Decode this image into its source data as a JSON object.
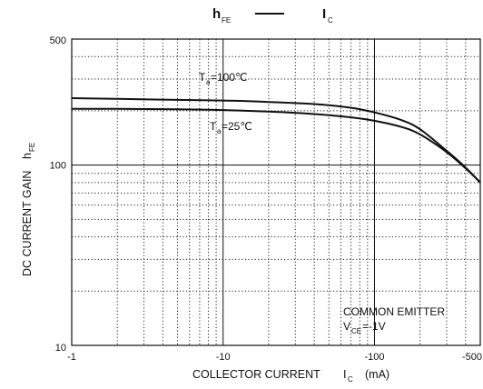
{
  "chart_data": {
    "type": "line",
    "title": {
      "left": "h",
      "left_sub": "FE",
      "right": "I",
      "right_sub": "C"
    },
    "xlabel": {
      "main": "COLLECTOR CURRENT",
      "symbol": "I",
      "symbol_sub": "C",
      "unit": "(mA)"
    },
    "ylabel": {
      "main": "DC CURRENT GAIN",
      "symbol": "h",
      "symbol_sub": "FE"
    },
    "x_scale": "log",
    "y_scale": "log",
    "xlim": [
      -1,
      -500
    ],
    "ylim": [
      10,
      500
    ],
    "x_ticks": [
      {
        "value": -1,
        "label": "-1"
      },
      {
        "value": -10,
        "label": "-10"
      },
      {
        "value": -100,
        "label": "-100"
      },
      {
        "value": -500,
        "label": "-500"
      }
    ],
    "y_ticks": [
      {
        "value": 10,
        "label": "10"
      },
      {
        "value": 100,
        "label": "100"
      },
      {
        "value": 500,
        "label": "500"
      }
    ],
    "grid": true,
    "series": [
      {
        "name_main": "T",
        "name_sub": "a",
        "name_rest": "=100℃",
        "x": [
          -1,
          -2,
          -5,
          -10,
          -20,
          -40,
          -70,
          -100,
          -150,
          -200,
          -300,
          -400,
          -500
        ],
        "y": [
          235,
          233,
          230,
          228,
          224,
          218,
          208,
          196,
          178,
          158,
          120,
          97,
          80
        ]
      },
      {
        "name_main": "T",
        "name_sub": "a",
        "name_rest": "=25℃",
        "x": [
          -1,
          -2,
          -5,
          -10,
          -20,
          -40,
          -70,
          -100,
          -150,
          -200,
          -300,
          -400,
          -500
        ],
        "y": [
          205,
          205,
          204,
          202,
          198,
          192,
          184,
          176,
          163,
          148,
          118,
          96,
          80
        ]
      }
    ],
    "annotations": {
      "line1": "COMMON EMITTER",
      "cond_main": "V",
      "cond_sub": "CE",
      "cond_rest": "=-1V"
    }
  }
}
